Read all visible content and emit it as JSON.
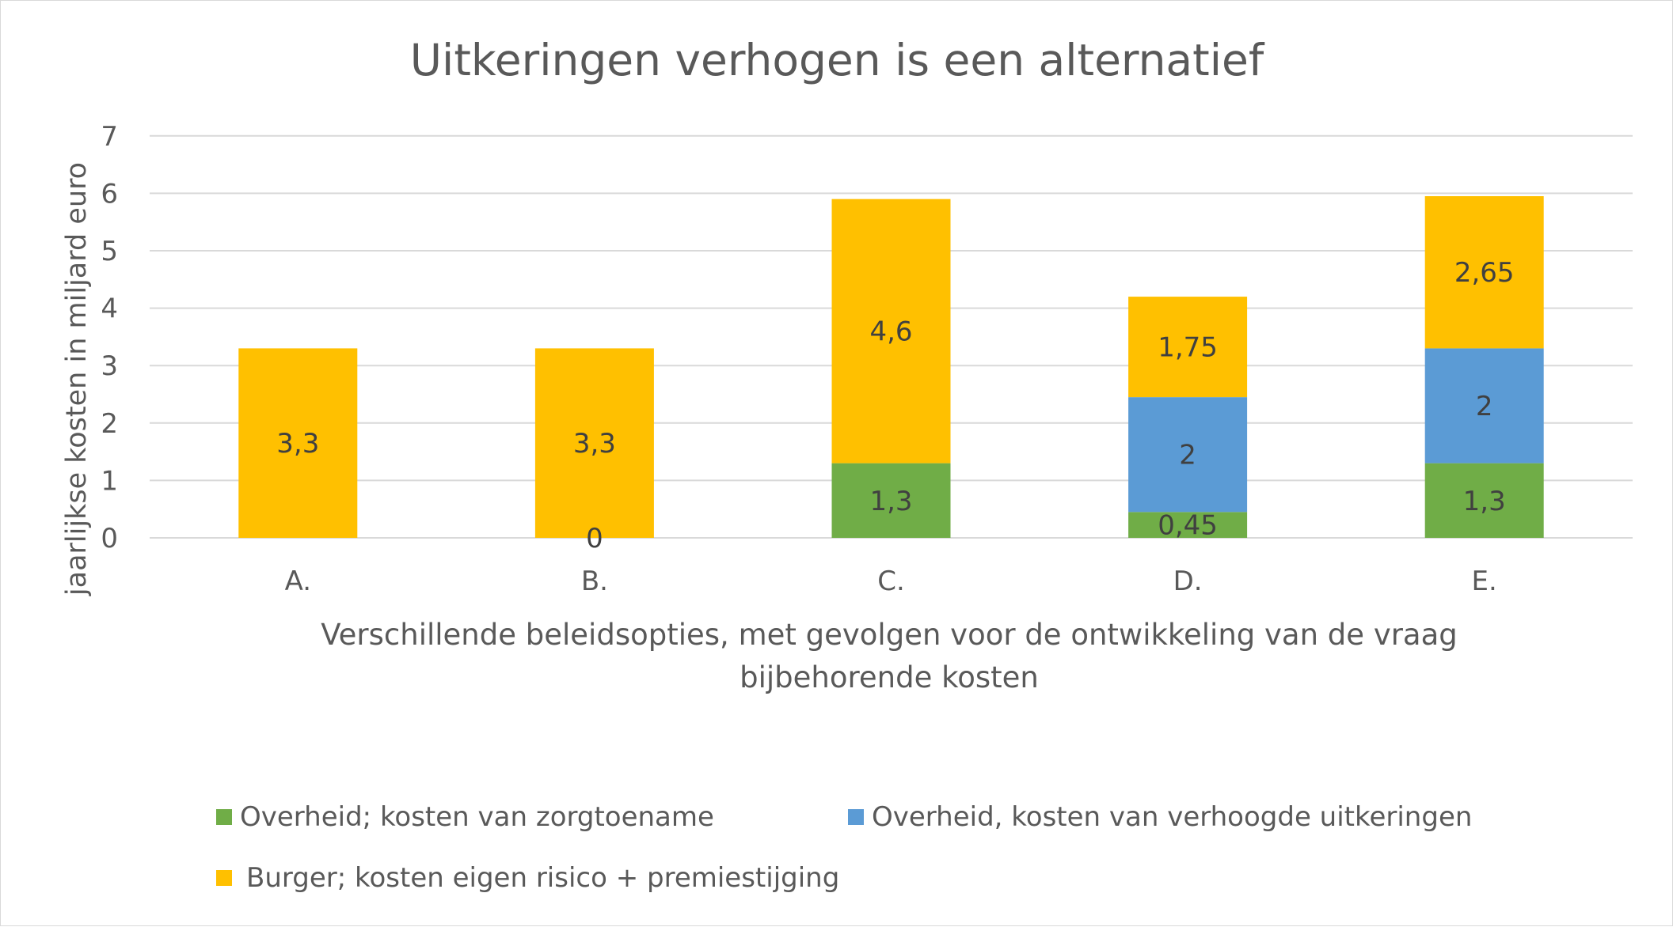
{
  "chart_data": {
    "type": "bar",
    "stacked": true,
    "title": "Uitkeringen verhogen is een alternatief",
    "xlabel_lines": [
      "Verschillende beleidsopties, met gevolgen voor de ontwikkeling van de vraag",
      "bijbehorende  kosten"
    ],
    "ylabel": "jaarlijkse kosten in miljard euro",
    "categories": [
      "A.",
      "B.",
      "C.",
      "D.",
      "E."
    ],
    "ylim": [
      0,
      7
    ],
    "yticks": [
      "0",
      "1",
      "2",
      "3",
      "4",
      "5",
      "6",
      "7"
    ],
    "grid": true,
    "legend_position": "bottom",
    "series": [
      {
        "name": "Overheid; kosten van zorgtoename",
        "color": "#70ad47",
        "values": [
          null,
          0,
          1.3,
          0.45,
          1.3
        ],
        "labels": [
          "",
          "0",
          "1,3",
          "0,45",
          "1,3"
        ]
      },
      {
        "name": "Overheid, kosten van verhoogde uitkeringen",
        "color": "#5b9bd5",
        "values": [
          null,
          null,
          null,
          2,
          2
        ],
        "labels": [
          "",
          "",
          "",
          "2",
          "2"
        ]
      },
      {
        "name": "Burger; kosten eigen risico + premiestijging",
        "color": "#ffc000",
        "values": [
          3.3,
          3.3,
          4.6,
          1.75,
          2.65
        ],
        "labels": [
          "3,3",
          "3,3",
          "4,6",
          "1,75",
          "2,65"
        ]
      }
    ]
  },
  "colors": {
    "gridline": "#d9d9d9",
    "text": "#595959",
    "label_text": "#404040"
  }
}
